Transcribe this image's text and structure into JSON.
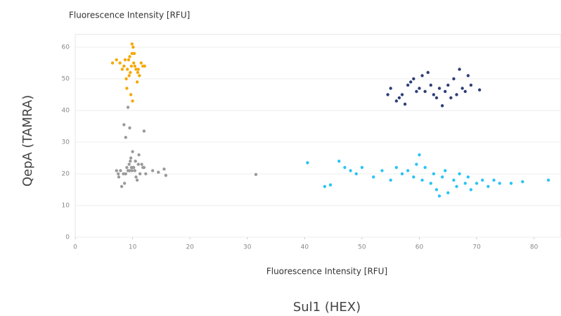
{
  "chart_data": {
    "type": "scatter",
    "y_unit_label": "Fluorescence Intensity [RFU]",
    "x_unit_label": "Fluorescence Intensity [RFU]",
    "y_label": "QepA (TAMRA)",
    "x_label": "Sul1 (HEX)",
    "xlim": [
      0,
      84.7
    ],
    "ylim": [
      0,
      64
    ],
    "xticks": [
      0,
      10,
      20,
      30,
      40,
      50,
      60,
      70,
      80
    ],
    "yticks": [
      0,
      10,
      20,
      30,
      40,
      50,
      60
    ],
    "grid": true,
    "series": [
      {
        "color": "#f5a800",
        "x": [
          9.8,
          10.2,
          9.1,
          8.7,
          10.9,
          11.5,
          9.5,
          8.2,
          10.4,
          9.9,
          7.8,
          11.2,
          10.6,
          9.3,
          8.9,
          10.1,
          9.6,
          11.8,
          7.2,
          10.8,
          9.0,
          9.7,
          10.3,
          8.5,
          11.0,
          9.4,
          10.0,
          6.5,
          12.1,
          9.9
        ],
        "y": [
          54,
          55,
          53,
          56,
          52,
          55,
          57,
          53,
          54,
          58,
          55,
          51,
          53,
          56,
          50,
          60,
          52,
          54,
          56,
          49,
          47,
          45,
          58,
          54,
          53,
          51,
          43,
          55,
          54,
          61
        ]
      },
      {
        "color": "#9a9a9a",
        "x": [
          9.5,
          10.2,
          8.8,
          11.0,
          9.9,
          7.6,
          12.0,
          10.5,
          8.4,
          9.2,
          10.8,
          11.6,
          7.9,
          9.7,
          10.1,
          8.6,
          11.3,
          9.0,
          10.6,
          9.4,
          7.2,
          12.3,
          10.0,
          8.1,
          11.8,
          9.6,
          10.4,
          7.5,
          11.1,
          9.8,
          13.5,
          14.5,
          15.5,
          15.8,
          31.5,
          8.5,
          9.5,
          12,
          8.8,
          9.2
        ],
        "y": [
          21,
          22,
          20,
          23,
          21,
          19,
          22,
          24,
          20,
          21,
          18,
          23,
          21,
          25,
          22,
          17,
          20,
          22,
          19,
          23,
          21,
          20,
          27,
          16,
          22,
          24,
          21,
          20,
          26,
          22,
          21,
          20.5,
          21.5,
          19.5,
          19.8,
          35.5,
          34.5,
          33.5,
          31.5,
          41
        ]
      },
      {
        "color": "#29c4f5",
        "x": [
          40.5,
          43.5,
          44.5,
          46,
          47,
          48,
          49,
          50,
          52,
          53.5,
          55,
          56,
          57,
          58,
          59,
          60,
          60.5,
          61,
          62,
          62.5,
          63,
          64,
          64.5,
          65,
          66,
          66.5,
          67,
          68,
          68.5,
          69,
          70,
          71,
          72,
          73,
          74,
          76,
          78,
          82.5,
          59.5,
          63.5
        ],
        "y": [
          23.5,
          16,
          16.5,
          24,
          22,
          21,
          20,
          22,
          19,
          21,
          18,
          22,
          20,
          21,
          19,
          26,
          18,
          22,
          17,
          20,
          15,
          19,
          21,
          14,
          18,
          16,
          20,
          17,
          19,
          15,
          17,
          18,
          16,
          18,
          17,
          17,
          17.5,
          18,
          23,
          13
        ]
      },
      {
        "color": "#2e3f78",
        "x": [
          54.5,
          55,
          56,
          57,
          57.5,
          58,
          58.5,
          59,
          60,
          60.5,
          61,
          61.5,
          62,
          62.5,
          63,
          63.5,
          64,
          64.5,
          65,
          65.5,
          66,
          66.5,
          67,
          67.5,
          68,
          68.5,
          69,
          70.5,
          56.5,
          59.5
        ],
        "y": [
          45,
          47,
          43,
          45,
          42,
          48,
          49,
          50,
          47,
          51,
          46,
          52,
          48,
          45,
          44,
          47,
          41.5,
          46,
          48,
          44,
          50,
          45,
          53,
          47,
          46,
          51,
          48,
          46.5,
          44,
          46
        ]
      }
    ]
  }
}
